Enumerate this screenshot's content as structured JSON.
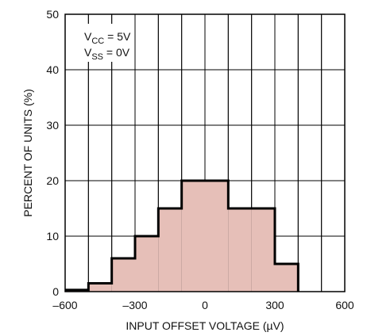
{
  "chart_data": {
    "type": "bar",
    "title": "",
    "xlabel": "INPUT OFFSET VOLTAGE (µV)",
    "ylabel": "PERCENT OF UNITS (%)",
    "xlim": [
      -600,
      600
    ],
    "ylim": [
      0,
      50
    ],
    "x_ticks": [
      -600,
      -300,
      0,
      300,
      600
    ],
    "x_tick_labels": [
      "–600",
      "–300",
      "0",
      "300",
      "600"
    ],
    "y_ticks": [
      0,
      10,
      20,
      30,
      40,
      50
    ],
    "y_tick_labels": [
      "0",
      "10",
      "20",
      "30",
      "40",
      "50"
    ],
    "grid": true,
    "bin_width": 100,
    "bins": [
      {
        "from": -600,
        "to": -500,
        "value": 0.3
      },
      {
        "from": -500,
        "to": -400,
        "value": 1.5
      },
      {
        "from": -400,
        "to": -300,
        "value": 6
      },
      {
        "from": -300,
        "to": -200,
        "value": 10
      },
      {
        "from": -200,
        "to": -100,
        "value": 15
      },
      {
        "from": -100,
        "to": 0,
        "value": 20
      },
      {
        "from": 0,
        "to": 100,
        "value": 20
      },
      {
        "from": 100,
        "to": 200,
        "value": 15
      },
      {
        "from": 200,
        "to": 300,
        "value": 15
      },
      {
        "from": 300,
        "to": 400,
        "value": 5
      }
    ],
    "bar_color": "#e6bfb8",
    "outline_color": "#000000",
    "annotation": {
      "line1_main": "V",
      "line1_sub": "CC",
      "line1_rest": " = 5V",
      "line2_main": "V",
      "line2_sub": "SS",
      "line2_rest": " = 0V"
    }
  }
}
